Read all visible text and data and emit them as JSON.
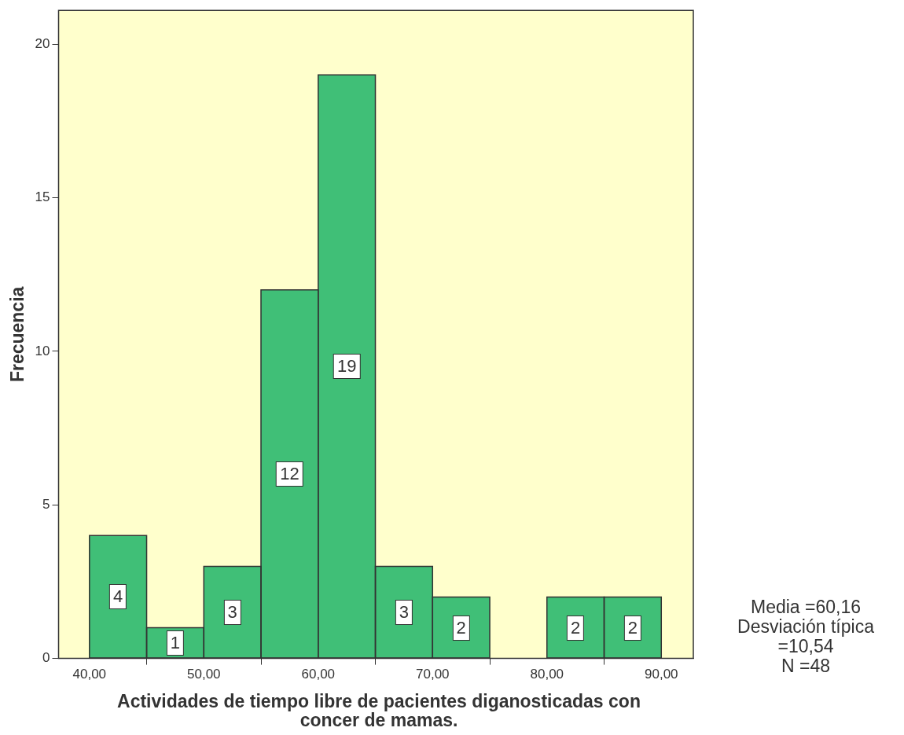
{
  "chart_data": {
    "type": "histogram",
    "xlabel": "Actividades de tiempo libre de pacientes diganosticadas con concer de mamas.",
    "ylabel": "Frecuencia",
    "bins": [
      40,
      45,
      50,
      55,
      60,
      65,
      70,
      75,
      80,
      85,
      90
    ],
    "values": [
      4,
      1,
      3,
      12,
      19,
      3,
      2,
      0,
      2,
      2
    ],
    "value_labels": [
      "4",
      "1",
      "3",
      "12",
      "19",
      "3",
      "2",
      null,
      "2",
      "2"
    ],
    "color": "#40bf77",
    "xlim": [
      37.3,
      92.8
    ],
    "xticks": [
      {
        "value": 40,
        "label": "40,00"
      },
      {
        "value": 50,
        "label": "50,00"
      },
      {
        "value": 60,
        "label": "60,00"
      },
      {
        "value": 70,
        "label": "70,00"
      },
      {
        "value": 80,
        "label": "80,00"
      },
      {
        "value": 90,
        "label": "90,00"
      }
    ],
    "ylim": [
      0,
      21.1
    ],
    "yticks": [
      0,
      5,
      10,
      15,
      20
    ],
    "grid": false,
    "annotations": [
      "Media =60,16",
      "Desviación típica =10,54",
      "N =48"
    ]
  }
}
